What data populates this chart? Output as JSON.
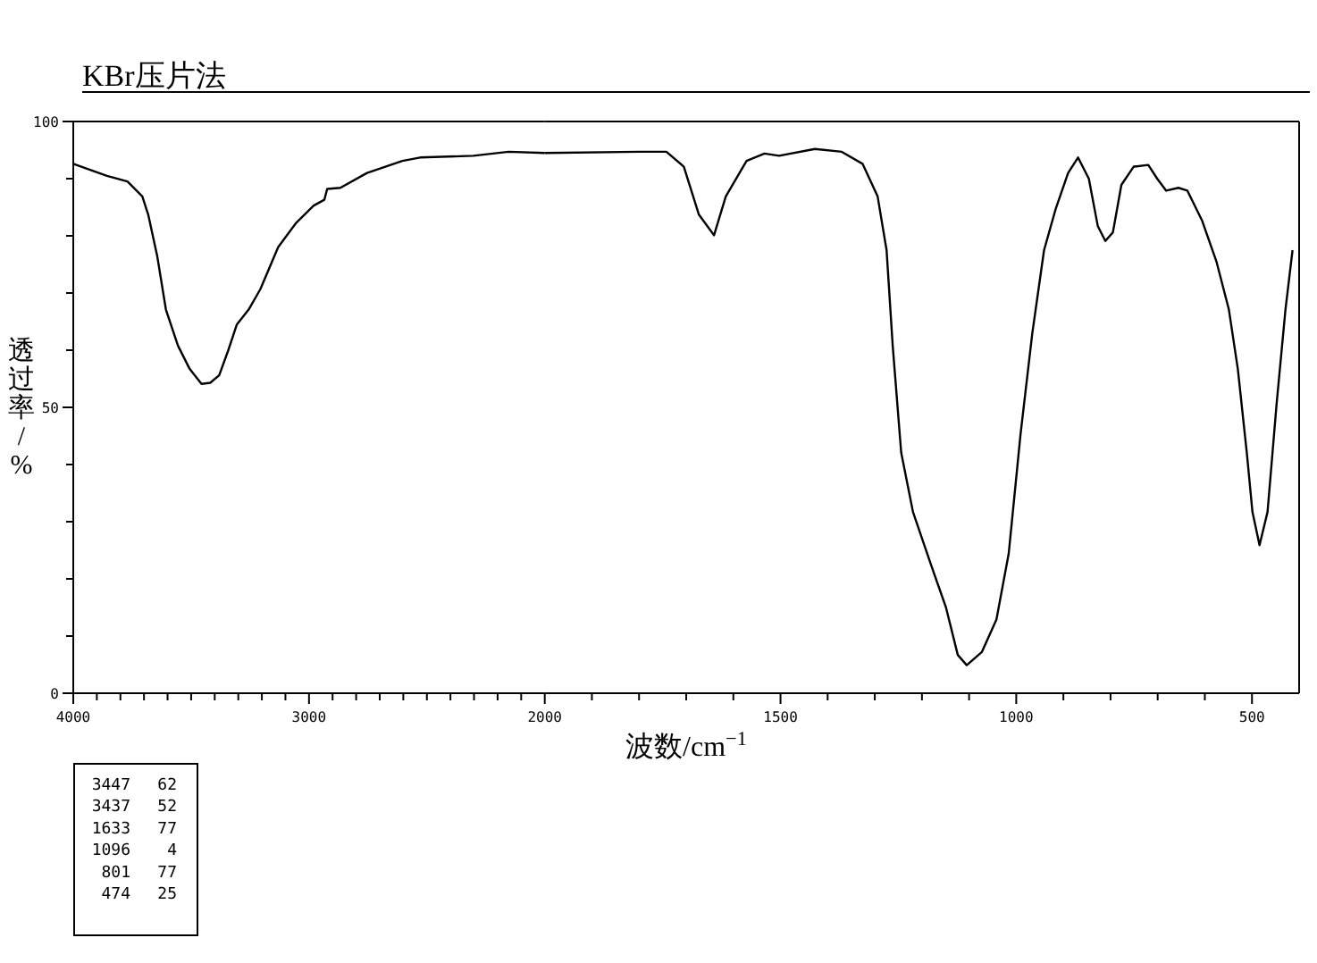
{
  "chart_data": [
    {
      "type": "line",
      "title": "KBr压片法",
      "ylabel": "透过率/%",
      "tick_labels": "xy",
      "xlim": [
        4000,
        2000
      ],
      "ylim": [
        0,
        100
      ],
      "xticks": [
        4000,
        {
          "value": 3900,
          "label": null
        },
        {
          "value": 3800,
          "label": null
        },
        {
          "value": 3700,
          "label": null
        },
        {
          "value": 3600,
          "label": null
        },
        {
          "value": 3500,
          "label": null
        },
        {
          "value": 3400,
          "label": null
        },
        {
          "value": 3300,
          "label": null
        },
        {
          "value": 3200,
          "label": null
        },
        {
          "value": 3100,
          "label": null
        },
        3000,
        {
          "value": 2900,
          "label": null
        },
        {
          "value": 2800,
          "label": null
        },
        {
          "value": 2700,
          "label": null
        },
        {
          "value": 2600,
          "label": null
        },
        {
          "value": 2500,
          "label": null
        },
        {
          "value": 2400,
          "label": null
        },
        {
          "value": 2300,
          "label": null
        },
        {
          "value": 2200,
          "label": null
        },
        {
          "value": 2100,
          "label": null
        }
      ],
      "yticks": [
        0,
        {
          "value": 10,
          "label": null
        },
        {
          "value": 20,
          "label": null
        },
        {
          "value": 30,
          "label": null
        },
        {
          "value": 40,
          "label": null
        },
        50,
        {
          "value": 60,
          "label": null
        },
        {
          "value": 70,
          "label": null
        },
        {
          "value": 80,
          "label": null
        },
        {
          "value": 90,
          "label": null
        },
        100
      ],
      "grid": false,
      "marker": "none",
      "line_style": "solid",
      "series": [
        {
          "color": "#000000",
          "x": [
            4000,
            3857,
            3770,
            3707,
            3682,
            3644,
            3607,
            3556,
            3506,
            3456,
            3419,
            3381,
            3344,
            3306,
            3256,
            3206,
            3131,
            3056,
            2980,
            2935,
            2923,
            2867,
            2754,
            2604,
            2529,
            2303,
            2153,
            2000
          ],
          "values": [
            92.6,
            90.5,
            89.5,
            86.9,
            83.7,
            76.5,
            67.1,
            60.8,
            56.7,
            54.1,
            54.3,
            55.6,
            59.8,
            64.5,
            67.1,
            70.7,
            78,
            82.2,
            85.3,
            86.3,
            88.2,
            88.4,
            91,
            93.1,
            93.7,
            94,
            94.7,
            94.5
          ]
        }
      ]
    },
    {
      "type": "line",
      "xlabel": "波数/cm$^{−1}$",
      "tick_labels": "x",
      "xlim": [
        2000,
        400
      ],
      "ylim": [
        0,
        100
      ],
      "xticks": [
        2000,
        {
          "value": 1900,
          "label": null
        },
        {
          "value": 1800,
          "label": null
        },
        {
          "value": 1700,
          "label": null
        },
        {
          "value": 1600,
          "label": null
        },
        1500,
        {
          "value": 1400,
          "label": null
        },
        {
          "value": 1300,
          "label": null
        },
        {
          "value": 1200,
          "label": null
        },
        {
          "value": 1100,
          "label": null
        },
        1000,
        {
          "value": 900,
          "label": null
        },
        {
          "value": 800,
          "label": null
        },
        {
          "value": 700,
          "label": null
        },
        {
          "value": 600,
          "label": null
        },
        500
      ],
      "grid": false,
      "marker": "none",
      "line_style": "solid",
      "series": [
        {
          "color": "#000000",
          "x": [
            2000,
            1799,
            1742,
            1705,
            1673,
            1641,
            1616,
            1572,
            1534,
            1503,
            1427,
            1370,
            1326,
            1294,
            1275,
            1262,
            1244,
            1219,
            1180,
            1149,
            1124,
            1105,
            1073,
            1042,
            1016,
            991,
            966,
            941,
            916,
            890,
            869,
            846,
            827,
            811,
            795,
            777,
            751,
            720,
            701,
            682,
            656,
            637,
            606,
            575,
            549,
            530,
            511,
            499,
            484,
            467,
            448,
            429,
            414
          ],
          "values": [
            94.5,
            94.7,
            94.7,
            92.1,
            83.7,
            80.1,
            86.9,
            93.1,
            94.4,
            94,
            95.2,
            94.7,
            92.6,
            86.9,
            77.5,
            60.8,
            42.1,
            31.7,
            22.3,
            15,
            6.7,
            4.9,
            7.2,
            12.9,
            24.4,
            45.2,
            62.9,
            77.5,
            84.8,
            91,
            93.7,
            90,
            81.7,
            79.1,
            80.6,
            88.9,
            92.1,
            92.4,
            90,
            87.9,
            88.4,
            87.9,
            82.7,
            75.4,
            67.1,
            56.7,
            42.1,
            31.7,
            25.9,
            31.7,
            50.4,
            67.1,
            77.5
          ]
        }
      ],
      "annotations": [
        "3447 62",
        "3437 52",
        "1633 77",
        "1096 4",
        "801 77",
        "474 25"
      ]
    }
  ]
}
